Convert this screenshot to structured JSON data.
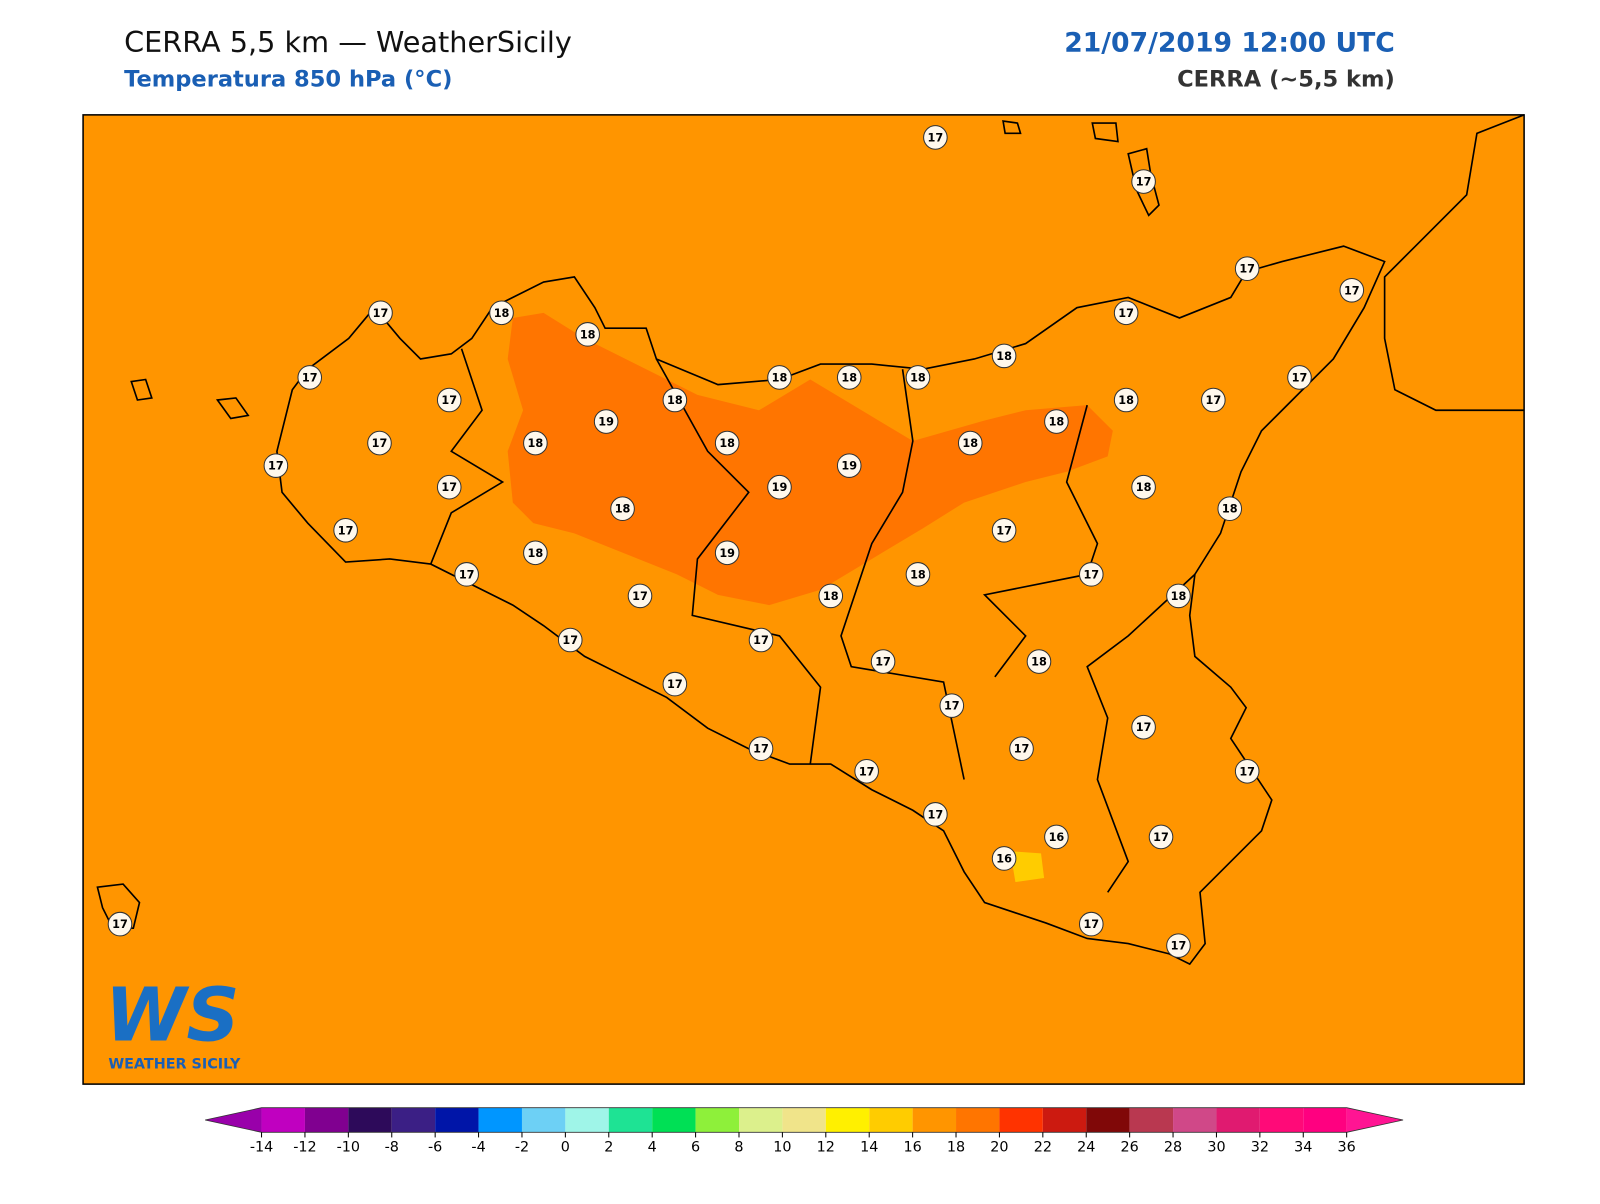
{
  "header": {
    "title": "CERRA 5,5 km — WeatherSicily",
    "subtitle": "Temperatura 850 hPa (°C)",
    "date": "21/07/2019 12:00 UTC",
    "model": "CERRA (~5,5 km)"
  },
  "stations": [
    17,
    17,
    17,
    17,
    17,
    18,
    18,
    17,
    18,
    17,
    18,
    18,
    18,
    17,
    17,
    18,
    19,
    18,
    17,
    18,
    17,
    18,
    18,
    18,
    17,
    19,
    17,
    19,
    18,
    18,
    18,
    17,
    17,
    18,
    19,
    17,
    18,
    17,
    17,
    18,
    18,
    17,
    17,
    17,
    18,
    17,
    17,
    17,
    17,
    17,
    17,
    17,
    17,
    16,
    17,
    16,
    17,
    17,
    17
  ],
  "colorbar": {
    "ticks": [
      -14,
      -12,
      -10,
      -8,
      -6,
      -4,
      -2,
      0,
      2,
      4,
      6,
      8,
      10,
      12,
      14,
      16,
      18,
      20,
      22,
      24,
      26,
      28,
      30,
      32,
      34,
      36
    ],
    "colors": [
      "#c000c0",
      "#800090",
      "#2d0a5a",
      "#3b1f85",
      "#0015a8",
      "#0096ff",
      "#6dd0f5",
      "#9ff5e8",
      "#1ee394",
      "#00e055",
      "#8ef03a",
      "#dcf08c",
      "#f0e48a",
      "#fff000",
      "#ffcc00",
      "#ff9500",
      "#ff7500",
      "#ff3300",
      "#cc1a10",
      "#800808",
      "#b93850",
      "#d04888",
      "#e01a70",
      "#ff0a78",
      "#ff0080"
    ],
    "under": "#9900aa",
    "over": "#ff1493"
  },
  "logo": {
    "mark": "WS",
    "text": "WEATHER SICILY"
  }
}
